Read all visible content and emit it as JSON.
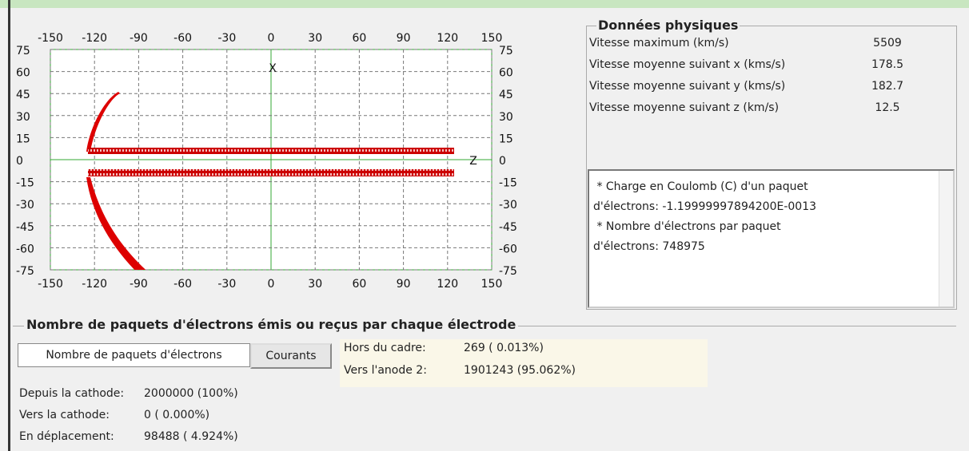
{
  "plot": {
    "xticks": [
      -150,
      -120,
      -90,
      -60,
      -30,
      0,
      30,
      60,
      90,
      120,
      150
    ],
    "yticks": [
      75,
      60,
      45,
      30,
      15,
      0,
      -15,
      -30,
      -45,
      -60,
      -75
    ],
    "xlim": [
      -150,
      150
    ],
    "ylim": [
      -75,
      75
    ],
    "axis_x_label": "X",
    "axis_z_label": "Z"
  },
  "physical_data": {
    "title": "Données physiques",
    "rows": [
      {
        "label": "Vitesse maximum (km/s)",
        "value": "5509"
      },
      {
        "label": "Vitesse moyenne suivant x (kms/s)",
        "value": "178.5"
      },
      {
        "label": "Vitesse moyenne suivant y (kms/s)",
        "value": "182.7"
      },
      {
        "label": "Vitesse moyenne suivant z (km/s)",
        "value": "12.5"
      }
    ]
  },
  "info_text": {
    "lines": [
      " * Charge en Coulomb (C) d'un paquet",
      "d'électrons: -1.19999997894200E-0013",
      " * Nombre d'électrons par paquet",
      "d'électrons: 748975"
    ]
  },
  "electrodes": {
    "title": "Nombre de paquets d'électrons émis ou reçus par chaque électrode",
    "tabs": [
      "Nombre de paquets d'électrons",
      "Courants"
    ],
    "right_rows": [
      {
        "label": "Hors du cadre:",
        "value": "269 ( 0.013%)"
      },
      {
        "label": "Vers l'anode 2:",
        "value": "1901243 (95.062%)"
      }
    ],
    "left_rows": [
      {
        "label": "Depuis la cathode:",
        "value": "2000000 (100%)"
      },
      {
        "label": "Vers la cathode:",
        "value": "0 ( 0.000%)"
      },
      {
        "label": "En déplacement:",
        "value": "98488 ( 4.924%)"
      }
    ]
  }
}
